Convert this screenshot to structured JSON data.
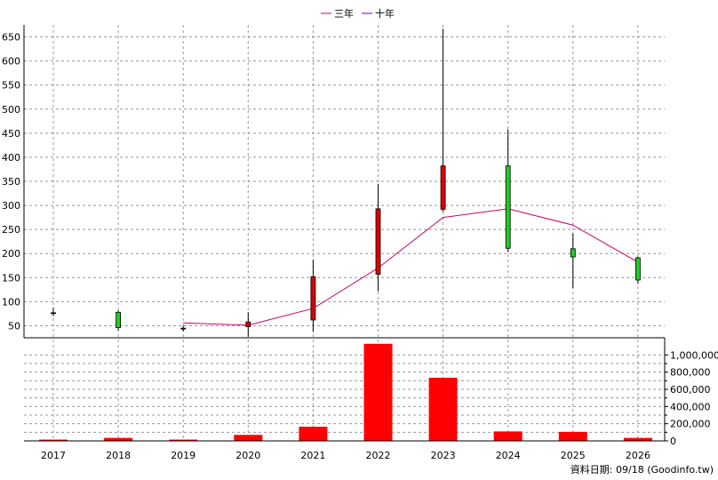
{
  "legend": [
    {
      "label": "三年",
      "color": "#cc0066"
    },
    {
      "label": "十年",
      "color": "#6600cc"
    }
  ],
  "source": "資料日期: 09/18  (Goodinfo.tw)",
  "colors": {
    "up": "#dd0000",
    "down": "#22cc22",
    "volume": "#ff0000",
    "grid": "#999999"
  },
  "chart_data": [
    {
      "type": "candlestick",
      "title": "",
      "legend_placement": "top-center",
      "grid": true,
      "ylim": [
        25,
        675
      ],
      "yticks": [
        50,
        100,
        150,
        200,
        250,
        300,
        350,
        400,
        450,
        500,
        550,
        600,
        650
      ],
      "categories": [
        "2017",
        "2018",
        "2019",
        "2020",
        "2021",
        "2022",
        "2023",
        "2024",
        "2025",
        "2026"
      ],
      "candles": [
        {
          "year": "2017",
          "open": 77,
          "high": 88,
          "low": 70,
          "close": 77
        },
        {
          "year": "2018",
          "open": 78,
          "high": 82,
          "low": 40,
          "close": 46
        },
        {
          "year": "2019",
          "open": 45,
          "high": 50,
          "low": 38,
          "close": 45
        },
        {
          "year": "2020",
          "open": 48,
          "high": 78,
          "low": 27,
          "close": 58
        },
        {
          "year": "2021",
          "open": 62,
          "high": 187,
          "low": 37,
          "close": 152
        },
        {
          "year": "2022",
          "open": 157,
          "high": 345,
          "low": 122,
          "close": 293
        },
        {
          "year": "2023",
          "open": 292,
          "high": 667,
          "low": 287,
          "close": 382
        },
        {
          "year": "2024",
          "open": 382,
          "high": 458,
          "low": 203,
          "close": 211
        },
        {
          "year": "2025",
          "open": 210,
          "high": 242,
          "low": 128,
          "close": 193
        },
        {
          "year": "2026",
          "open": 191,
          "high": 194,
          "low": 137,
          "close": 145
        }
      ],
      "series": [
        {
          "name": "三年",
          "color": "#cc0066",
          "values": [
            null,
            null,
            56,
            51,
            86,
            170,
            275,
            293,
            259,
            182
          ]
        }
      ]
    },
    {
      "type": "bar",
      "categories": [
        "2017",
        "2018",
        "2019",
        "2020",
        "2021",
        "2022",
        "2023",
        "2024",
        "2025",
        "2026"
      ],
      "values": [
        15000,
        35000,
        15000,
        70000,
        165000,
        1130000,
        735000,
        110000,
        105000,
        35000
      ],
      "ylim": [
        0,
        1200000
      ],
      "yticks": [
        0,
        200000,
        400000,
        600000,
        800000,
        1000000
      ],
      "ytick_labels": [
        "0",
        "200,000",
        "400,000",
        "600,000",
        "800,000",
        "1,000,000"
      ]
    }
  ]
}
